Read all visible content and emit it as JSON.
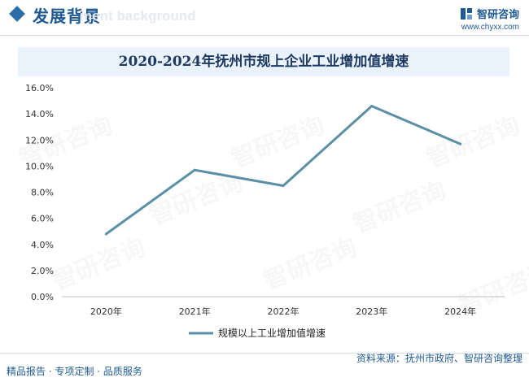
{
  "header": {
    "title": "发展背景",
    "ghost_text": "ment background"
  },
  "brand": {
    "name": "智研咨询",
    "url": "www.chyxx.com"
  },
  "footer": {
    "left": "精品报告 · 专项定制 · 品质服务",
    "source": "资料来源：抚州市政府、智研咨询整理"
  },
  "watermark": {
    "text": "智研咨询"
  },
  "colors": {
    "line": "#5b8fa6",
    "accent": "#1f5a92"
  },
  "chart_data": {
    "type": "line",
    "title": "2020-2024年抚州市规上企业工业增加值增速",
    "categories": [
      "2020年",
      "2021年",
      "2022年",
      "2023年",
      "2024年"
    ],
    "series": [
      {
        "name": "规模以上工业增加值增速",
        "values": [
          4.8,
          9.7,
          8.5,
          14.6,
          11.7
        ]
      }
    ],
    "y_ticks": [
      "0.0%",
      "2.0%",
      "4.0%",
      "6.0%",
      "8.0%",
      "10.0%",
      "12.0%",
      "14.0%",
      "16.0%"
    ],
    "ylim": [
      0,
      16
    ],
    "grid": false,
    "legend_position": "bottom-center"
  }
}
